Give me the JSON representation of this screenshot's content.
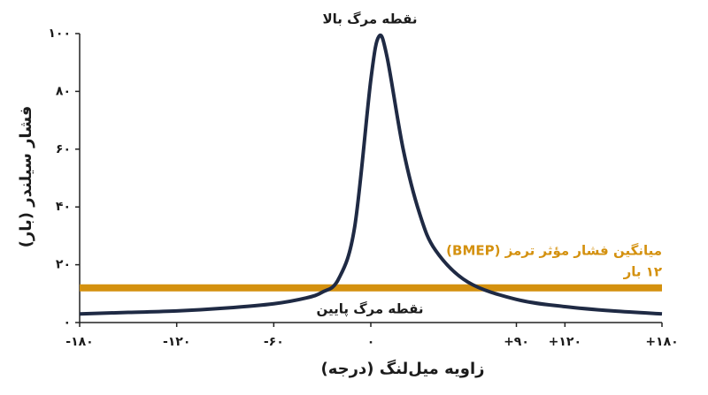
{
  "chart_data": {
    "type": "line",
    "xlabel": "زاویه میل‌لنگ (درجه)",
    "ylabel": "فشار سیلندر (بار)",
    "x": [
      -180,
      -150,
      -120,
      -90,
      -60,
      -40,
      -30,
      -20,
      -10,
      0,
      5,
      10,
      20,
      30,
      40,
      60,
      90,
      120,
      150,
      180
    ],
    "values": [
      3,
      3.5,
      4,
      5,
      6.5,
      8.5,
      10.5,
      15,
      33,
      84,
      99,
      92,
      60,
      38,
      25,
      14,
      8,
      5.5,
      4,
      3
    ],
    "color": "#1f2a44",
    "xlim": [
      -180,
      180
    ],
    "ylim": [
      0,
      100
    ],
    "xticks": [
      {
        "value": -180,
        "label": "-۱۸۰"
      },
      {
        "value": -120,
        "label": "-۱۲۰"
      },
      {
        "value": -60,
        "label": "-۶۰"
      },
      {
        "value": 0,
        "label": "۰"
      },
      {
        "value": 90,
        "label": "+۹۰"
      },
      {
        "value": 120,
        "label": "+۱۲۰"
      },
      {
        "value": 180,
        "label": "+۱۸۰"
      }
    ],
    "yticks": [
      {
        "value": 0,
        "label": "۰"
      },
      {
        "value": 20,
        "label": "۲۰"
      },
      {
        "value": 40,
        "label": "۴۰"
      },
      {
        "value": 60,
        "label": "۶۰"
      },
      {
        "value": 80,
        "label": "۸۰"
      },
      {
        "value": 100,
        "label": "۱۰۰"
      }
    ],
    "reference_line": {
      "name": "میانگین فشار مؤثر ترمز (BMEP)",
      "value": 12,
      "value_label": "۱۲ بار",
      "color": "#d4910f"
    },
    "annotations": [
      "نقطه مرگ بالا",
      "نقطه مرگ پایین"
    ]
  }
}
